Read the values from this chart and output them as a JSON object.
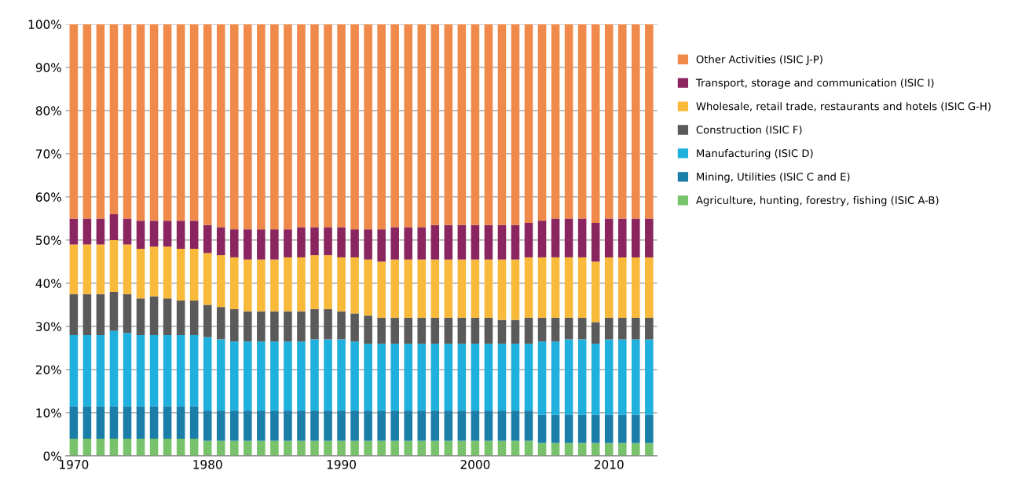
{
  "chart_data": {
    "type": "bar",
    "stacked": true,
    "categories": [
      "1970",
      null,
      null,
      null,
      null,
      null,
      null,
      null,
      null,
      null,
      "1980",
      null,
      null,
      null,
      null,
      null,
      null,
      null,
      null,
      null,
      "1990",
      null,
      null,
      null,
      null,
      null,
      null,
      null,
      null,
      null,
      "2000",
      null,
      null,
      null,
      null,
      null,
      null,
      null,
      null,
      null,
      "2010",
      null,
      null,
      null
    ],
    "series": [
      {
        "name": "Agriculture, hunting, forestry, fishing (ISIC A-B)",
        "color": "#79c26c",
        "values": [
          4,
          4,
          4,
          4,
          4,
          4,
          4,
          4,
          4,
          4,
          3.5,
          3.5,
          3.5,
          3.5,
          3.5,
          3.5,
          3.5,
          3.5,
          3.5,
          3.5,
          3.5,
          3.5,
          3.5,
          3.5,
          3.5,
          3.5,
          3.5,
          3.5,
          3.5,
          3.5,
          3.5,
          3.5,
          3.5,
          3.5,
          3.5,
          3,
          3,
          3,
          3,
          3,
          3,
          3,
          3,
          3
        ]
      },
      {
        "name": "Mining, Utilities (ISIC C and E)",
        "color": "#1a7ea8",
        "values": [
          7.5,
          7.5,
          7.5,
          7.5,
          7.5,
          7.5,
          7.5,
          7.5,
          7.5,
          7.5,
          7,
          7,
          7,
          7,
          7,
          7,
          7,
          7,
          7,
          7,
          7,
          7,
          7,
          7,
          7,
          7,
          7,
          7,
          7,
          7,
          7,
          7,
          7,
          7,
          7,
          6.5,
          6.5,
          6.5,
          6.5,
          6.5,
          6.5,
          6.5,
          6.5,
          6.5
        ]
      },
      {
        "name": "Manufacturing (ISIC D)",
        "color": "#1fb0dd",
        "values": [
          16.5,
          16.5,
          16.5,
          17.5,
          17,
          16.5,
          16.5,
          16.5,
          16.5,
          16.5,
          17,
          16.5,
          16,
          16,
          16,
          16,
          16,
          16,
          16.5,
          16.5,
          16.5,
          16,
          15.5,
          15.5,
          15.5,
          15.5,
          15.5,
          15.5,
          15.5,
          15.5,
          15.5,
          15.5,
          15.5,
          15.5,
          15.5,
          17,
          17,
          17.5,
          17.5,
          16.5,
          17.5,
          17.5,
          17.5,
          17.5
        ]
      },
      {
        "name": "Construction (ISIC F)",
        "color": "#5a5a5a",
        "values": [
          9.5,
          9.5,
          9.5,
          9,
          9,
          8.5,
          9,
          8.5,
          8,
          8,
          7.5,
          7.5,
          7.5,
          7,
          7,
          7,
          7,
          7,
          7,
          7,
          6.5,
          6.5,
          6.5,
          6,
          6,
          6,
          6,
          6,
          6,
          6,
          6,
          6,
          5.5,
          5.5,
          6,
          5.5,
          5.5,
          5,
          5,
          5,
          5,
          5,
          5,
          5
        ]
      },
      {
        "name": "Wholesale, retail trade, restaurants and hotels (ISIC G-H)",
        "color": "#f9b93a",
        "values": [
          11.5,
          11.5,
          11.5,
          12,
          11.5,
          11.5,
          11.5,
          12,
          12,
          12,
          12,
          12,
          12,
          12,
          12,
          12,
          12.5,
          12.5,
          12.5,
          12.5,
          12.5,
          13,
          13,
          13,
          13.5,
          13.5,
          13.5,
          13.5,
          13.5,
          13.5,
          13.5,
          13.5,
          14,
          14,
          14,
          14,
          14,
          14,
          14,
          14,
          14,
          14,
          14,
          14
        ]
      },
      {
        "name": "Transport, storage and communication (ISIC I)",
        "color": "#8b2560",
        "values": [
          6,
          6,
          6,
          6,
          6,
          6.5,
          6,
          6,
          6.5,
          6.5,
          6.5,
          6.5,
          6.5,
          7,
          7,
          7,
          6.5,
          7,
          6.5,
          6.5,
          7,
          6.5,
          7,
          7.5,
          7.5,
          7.5,
          7.5,
          8,
          8,
          8,
          8,
          8,
          8,
          8,
          8,
          8.5,
          9,
          9,
          9,
          9,
          9,
          9,
          9,
          9
        ]
      },
      {
        "name": "Other Activities (ISIC J-P)",
        "color": "#f08a4b",
        "values": [
          45,
          45,
          45,
          44,
          45,
          45.5,
          45.5,
          45.5,
          45.5,
          45.5,
          46.5,
          47,
          47.5,
          47.5,
          47.5,
          47.5,
          47.5,
          47,
          47,
          47,
          47,
          47.5,
          47.5,
          47.5,
          47,
          47,
          47,
          46.5,
          46.5,
          46.5,
          46.5,
          46.5,
          46.5,
          46.5,
          46,
          45.5,
          45,
          45,
          45,
          46,
          45,
          45,
          45,
          45
        ]
      }
    ],
    "ylim": [
      0,
      100
    ],
    "yticks": [
      {
        "value": 0,
        "label": "0%"
      },
      {
        "value": 10,
        "label": "10%"
      },
      {
        "value": 20,
        "label": "20%"
      },
      {
        "value": 30,
        "label": "30%"
      },
      {
        "value": 40,
        "label": "40%"
      },
      {
        "value": 50,
        "label": "50%"
      },
      {
        "value": 60,
        "label": "60%"
      },
      {
        "value": 70,
        "label": "70%"
      },
      {
        "value": 80,
        "label": "80%"
      },
      {
        "value": 90,
        "label": "90%"
      },
      {
        "value": 100,
        "label": "100%"
      }
    ],
    "grid": "y",
    "legend": "right"
  }
}
